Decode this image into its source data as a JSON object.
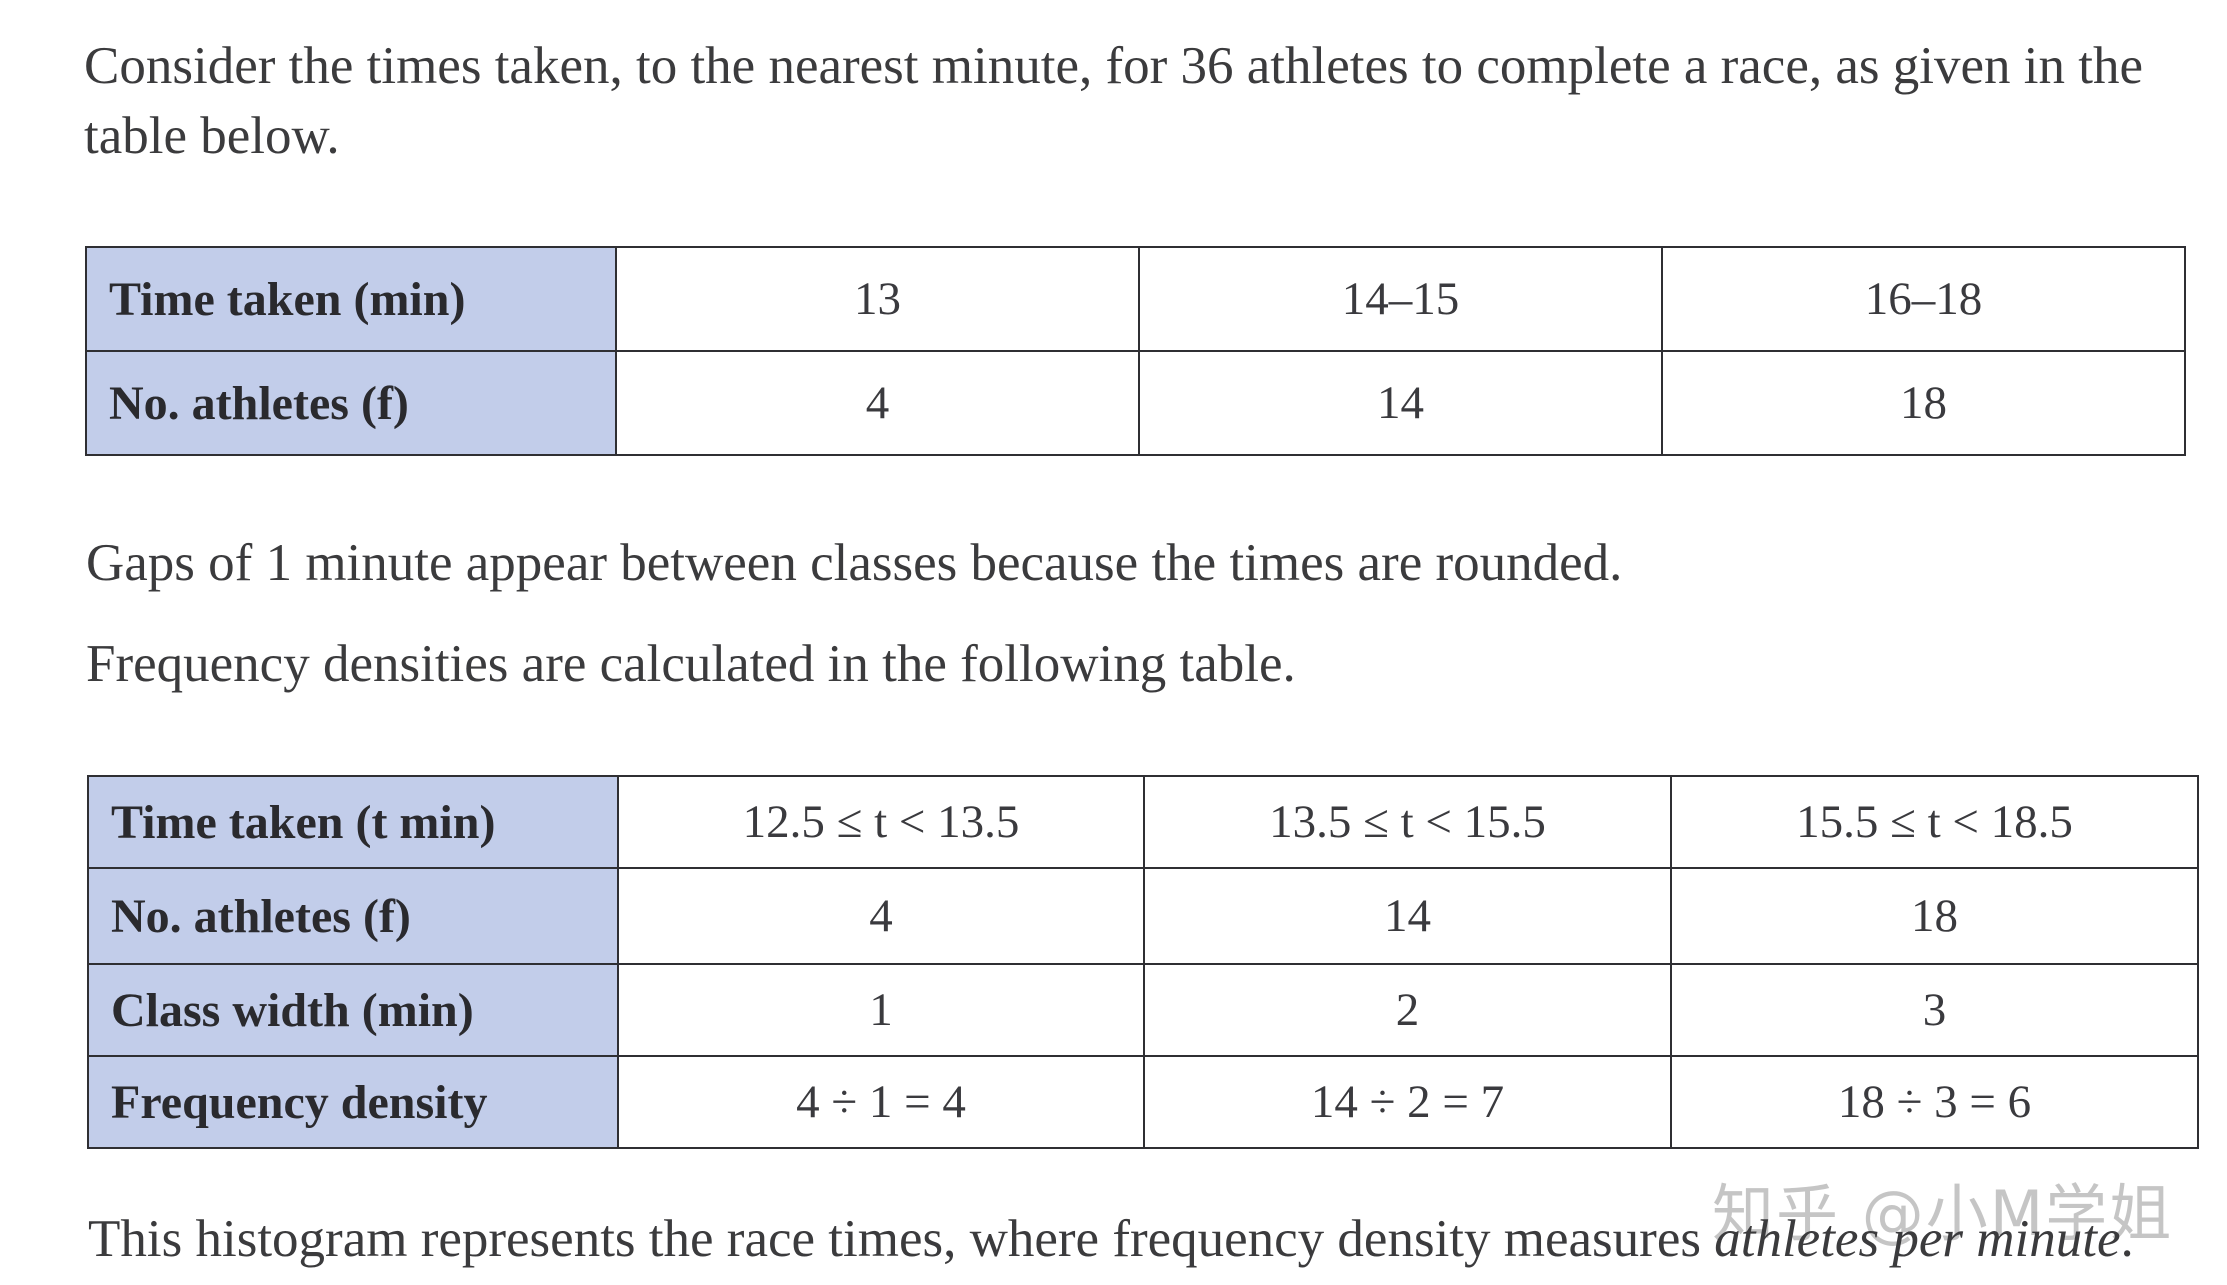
{
  "intro": "Consider the times taken, to the nearest minute, for 36 athletes to complete a race, as given in the table below.",
  "table1": {
    "rows": [
      {
        "header": "Time taken (min)",
        "cells": [
          "13",
          "14–15",
          "16–18"
        ]
      },
      {
        "header": "No. athletes (f)",
        "cells": [
          "4",
          "14",
          "18"
        ]
      }
    ]
  },
  "gaps_text": "Gaps of 1 minute appear between classes because the times are rounded.",
  "freq_text": "Frequency densities are calculated in the following table.",
  "table2": {
    "rows": [
      {
        "header": "Time taken (t min)",
        "cells": [
          "12.5 ≤ t < 13.5",
          "13.5 ≤ t < 15.5",
          "15.5 ≤ t < 18.5"
        ]
      },
      {
        "header": "No. athletes (f)",
        "cells": [
          "4",
          "14",
          "18"
        ]
      },
      {
        "header": "Class width (min)",
        "cells": [
          "1",
          "2",
          "3"
        ]
      },
      {
        "header": "Frequency density",
        "cells": [
          "4 ÷ 1 = 4",
          "14 ÷ 2 = 7",
          "18 ÷ 3 = 6"
        ]
      }
    ]
  },
  "histogram_text": {
    "lead": "This histogram represents the race times, where frequency density measures ",
    "emphasis": "athletes per minute",
    "tail": "."
  },
  "watermark": "知乎 @小M学姐"
}
